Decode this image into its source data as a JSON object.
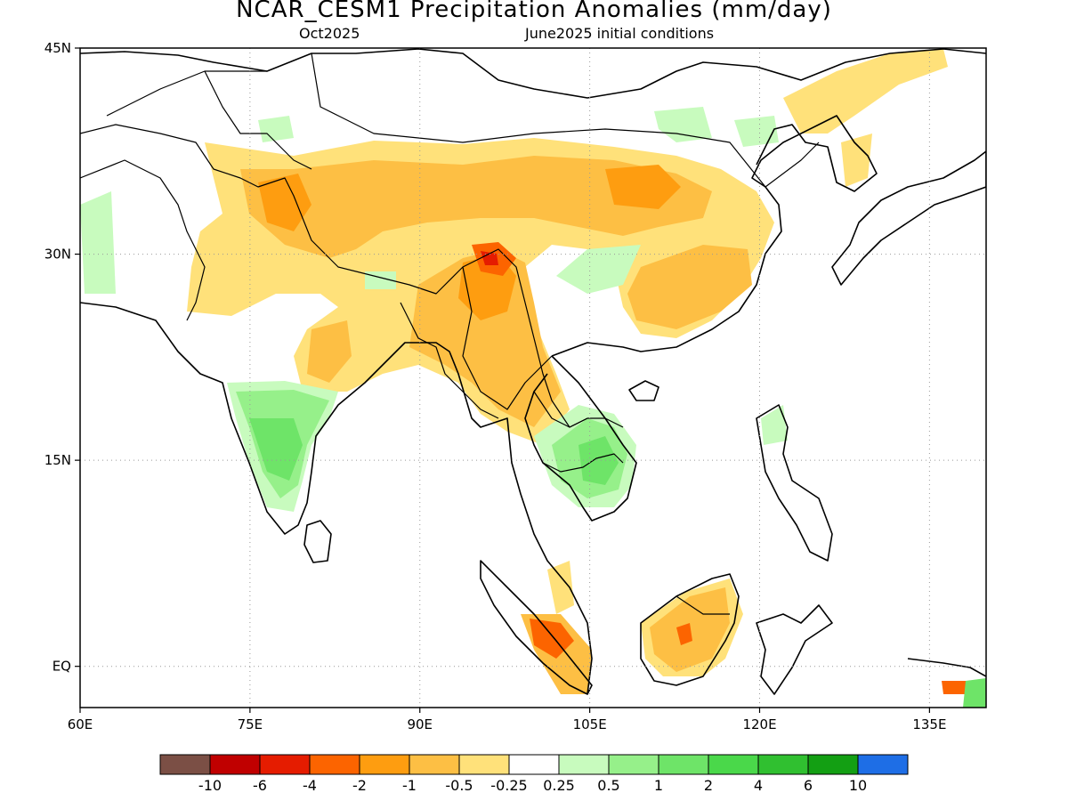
{
  "title": "NCAR_CESM1 Precipitation Anomalies (mm/day)",
  "subtitle_left": "Oct2025",
  "subtitle_right": "June2025 initial conditions",
  "map": {
    "lon_range": [
      60,
      140
    ],
    "lat_range": [
      -3,
      45
    ],
    "lon_ticks": [
      {
        "value": 60,
        "label": "60E"
      },
      {
        "value": 75,
        "label": "75E"
      },
      {
        "value": 90,
        "label": "90E"
      },
      {
        "value": 105,
        "label": "105E"
      },
      {
        "value": 120,
        "label": "120E"
      },
      {
        "value": 135,
        "label": "135E"
      }
    ],
    "lat_ticks": [
      {
        "value": 45,
        "label": "45N"
      },
      {
        "value": 30,
        "label": "30N"
      },
      {
        "value": 15,
        "label": "15N"
      },
      {
        "value": 0,
        "label": "EQ"
      }
    ],
    "grid": true
  },
  "colorbar": {
    "colors": [
      "#7b4f45",
      "#c00000",
      "#e51c00",
      "#fc6400",
      "#fe9d10",
      "#fdbf44",
      "#ffe17a",
      "#ffffff",
      "#c8fbbe",
      "#96f08a",
      "#6ee468",
      "#4ad84a",
      "#30c030",
      "#139f13",
      "#1e6ee6"
    ],
    "labels": [
      "-10",
      "-6",
      "-4",
      "-2",
      "-1",
      "-0.5",
      "-0.25",
      "0.25",
      "0.5",
      "1",
      "2",
      "4",
      "6",
      "10"
    ]
  }
}
